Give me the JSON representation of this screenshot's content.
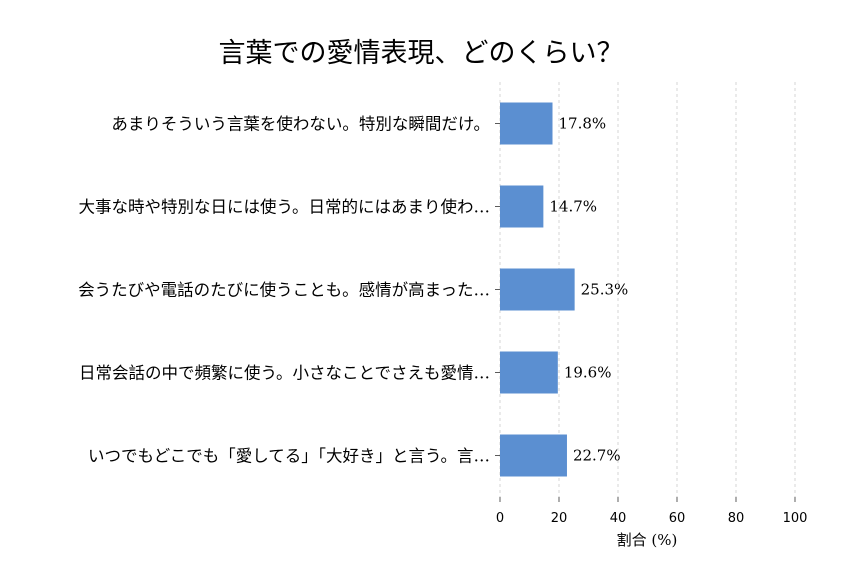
{
  "chart_data": {
    "type": "bar",
    "orientation": "horizontal",
    "title": "言葉での愛情表現、どのくらい？",
    "xlabel": "割合 (%)",
    "ylabel": "",
    "xlim": [
      0,
      100
    ],
    "xticks": [
      0,
      20,
      40,
      60,
      80,
      100
    ],
    "grid": "vertical dashed",
    "categories": [
      "あまりそういう言葉を使わない。特別な瞬間だけ。",
      "大事な時や特別な日には使う。日常的にはあまり使わ…",
      "会うたびや電話のたびに使うことも。感情が高まった…",
      "日常会話の中で頻繁に使う。小さなことでさえも愛情…",
      "いつでもどこでも「愛してる」「大好き」と言う。言…"
    ],
    "values": [
      17.8,
      14.7,
      25.3,
      19.6,
      22.7
    ],
    "value_labels": [
      "17.8%",
      "14.7%",
      "25.3%",
      "19.6%",
      "22.7%"
    ],
    "bar_color": "#5b8fd1",
    "grid_color": "#cccccc"
  }
}
